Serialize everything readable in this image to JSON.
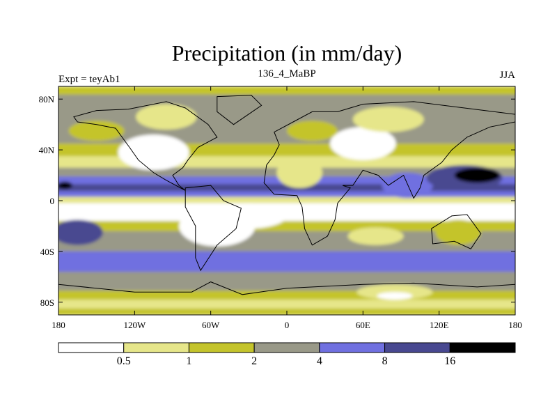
{
  "chart_data": {
    "type": "heatmap",
    "title": "Precipitation (in mm/day)",
    "left_string": "Expt = teyAb1",
    "center_string": "136_4_MaBP",
    "right_string": "JJA",
    "x_axis": {
      "range": [
        -180,
        180
      ],
      "ticks": [
        {
          "value": -180,
          "label": "180"
        },
        {
          "value": -120,
          "label": "120W"
        },
        {
          "value": -60,
          "label": "60W"
        },
        {
          "value": 0,
          "label": "0"
        },
        {
          "value": 60,
          "label": "60E"
        },
        {
          "value": 120,
          "label": "120E"
        },
        {
          "value": 180,
          "label": "180"
        }
      ]
    },
    "y_axis": {
      "range": [
        -90,
        90
      ],
      "ticks": [
        {
          "value": 80,
          "label": "80N"
        },
        {
          "value": 40,
          "label": "40N"
        },
        {
          "value": 0,
          "label": "0"
        },
        {
          "value": -40,
          "label": "40S"
        },
        {
          "value": -80,
          "label": "80S"
        }
      ]
    },
    "levels": [
      0.5,
      1,
      2,
      4,
      8,
      16
    ],
    "level_labels": [
      "0.5",
      "1",
      "2",
      "4",
      "8",
      "16"
    ],
    "colors": [
      "#ffffff",
      "#e6e68a",
      "#c4c42c",
      "#999988",
      "#7070e0",
      "#484890",
      "#000000"
    ],
    "bands": [
      {
        "lat": 87,
        "lev": 2
      },
      {
        "lat": 80,
        "lev": 3
      },
      {
        "lat": 70,
        "lev": 3
      },
      {
        "lat": 60,
        "lev": 3
      },
      {
        "lat": 50,
        "lev": 3
      },
      {
        "lat": 40,
        "lev": 2
      },
      {
        "lat": 30,
        "lev": 1
      },
      {
        "lat": 22,
        "lev": 3
      },
      {
        "lat": 16,
        "lev": 4
      },
      {
        "lat": 10,
        "lev": 5
      },
      {
        "lat": 5,
        "lev": 4
      },
      {
        "lat": 1,
        "lev": 1
      },
      {
        "lat": -5,
        "lev": 0
      },
      {
        "lat": -12,
        "lev": 0
      },
      {
        "lat": -20,
        "lev": 2
      },
      {
        "lat": -28,
        "lev": 3
      },
      {
        "lat": -36,
        "lev": 3
      },
      {
        "lat": -44,
        "lev": 4
      },
      {
        "lat": -52,
        "lev": 4
      },
      {
        "lat": -60,
        "lev": 3
      },
      {
        "lat": -68,
        "lev": 3
      },
      {
        "lat": -74,
        "lev": 2
      },
      {
        "lat": -82,
        "lev": 1
      },
      {
        "lat": -88,
        "lev": 2
      }
    ],
    "regions": [
      {
        "name": "n-america-west-dry",
        "lon": -105,
        "lat": 38,
        "rlon": 28,
        "rlat": 14,
        "lev": 0
      },
      {
        "name": "n-america-north-light",
        "lon": -95,
        "lat": 66,
        "rlon": 24,
        "rlat": 10,
        "lev": 1
      },
      {
        "name": "n-pacific-light",
        "lon": -150,
        "lat": 55,
        "rlon": 22,
        "rlat": 8,
        "lev": 2
      },
      {
        "name": "sahara-dry",
        "lon": 10,
        "lat": 22,
        "rlon": 18,
        "rlat": 12,
        "lev": 1
      },
      {
        "name": "central-asia-dry",
        "lon": 60,
        "lat": 45,
        "rlon": 26,
        "rlat": 13,
        "lev": 0
      },
      {
        "name": "siberia-light",
        "lon": 80,
        "lat": 64,
        "rlon": 28,
        "rlat": 10,
        "lev": 1
      },
      {
        "name": "europe-light",
        "lon": 20,
        "lat": 55,
        "rlon": 20,
        "rlat": 8,
        "lev": 2
      },
      {
        "name": "south-asia-wet",
        "lon": 95,
        "lat": 12,
        "rlon": 20,
        "rlat": 10,
        "lev": 4
      },
      {
        "name": "w-pacific-monsoon",
        "lon": 140,
        "lat": 18,
        "rlon": 30,
        "rlat": 10,
        "lev": 5
      },
      {
        "name": "w-pacific-core",
        "lon": 150,
        "lat": 20,
        "rlon": 18,
        "rlat": 6,
        "lev": 6
      },
      {
        "name": "e-pacific-itcz",
        "lon": -175,
        "lat": 12,
        "rlon": 6,
        "rlat": 3,
        "lev": 6
      },
      {
        "name": "s-america-dry",
        "lon": -55,
        "lat": -20,
        "rlon": 30,
        "rlat": 16,
        "lev": 0
      },
      {
        "name": "s-atlantic-dry",
        "lon": -30,
        "lat": -12,
        "rlon": 30,
        "rlat": 10,
        "lev": 0
      },
      {
        "name": "s-indian-light",
        "lon": 70,
        "lat": -28,
        "rlon": 22,
        "rlat": 7,
        "lev": 1
      },
      {
        "name": "s-pacific-wet",
        "lon": -165,
        "lat": -25,
        "rlon": 20,
        "rlat": 10,
        "lev": 5
      },
      {
        "name": "antarctic-light",
        "lon": 85,
        "lat": -72,
        "rlon": 30,
        "rlat": 6,
        "lev": 1
      },
      {
        "name": "antarctic-dry",
        "lon": 85,
        "lat": -75,
        "rlon": 14,
        "rlat": 3,
        "lev": 0
      },
      {
        "name": "s-ocean-wet",
        "lon": -10,
        "lat": -50,
        "rlon": 30,
        "rlat": 6,
        "lev": 4
      },
      {
        "name": "australia-dry",
        "lon": 135,
        "lat": -25,
        "rlon": 18,
        "rlat": 10,
        "lev": 2
      }
    ],
    "continents": [
      {
        "name": "north-america",
        "points": [
          [
            -168,
            66
          ],
          [
            -150,
            71
          ],
          [
            -125,
            72
          ],
          [
            -95,
            78
          ],
          [
            -80,
            73
          ],
          [
            -62,
            60
          ],
          [
            -55,
            50
          ],
          [
            -70,
            42
          ],
          [
            -78,
            32
          ],
          [
            -82,
            26
          ],
          [
            -90,
            20
          ],
          [
            -85,
            12
          ],
          [
            -80,
            8
          ],
          [
            -95,
            16
          ],
          [
            -105,
            22
          ],
          [
            -117,
            32
          ],
          [
            -124,
            42
          ],
          [
            -135,
            57
          ],
          [
            -150,
            60
          ],
          [
            -165,
            62
          ]
        ]
      },
      {
        "name": "greenland",
        "points": [
          [
            -55,
            82
          ],
          [
            -28,
            83
          ],
          [
            -20,
            75
          ],
          [
            -42,
            60
          ],
          [
            -55,
            70
          ]
        ]
      },
      {
        "name": "south-america",
        "points": [
          [
            -80,
            10
          ],
          [
            -60,
            12
          ],
          [
            -50,
            0
          ],
          [
            -36,
            -6
          ],
          [
            -40,
            -22
          ],
          [
            -55,
            -35
          ],
          [
            -68,
            -55
          ],
          [
            -72,
            -45
          ],
          [
            -72,
            -20
          ],
          [
            -80,
            -5
          ]
        ]
      },
      {
        "name": "eurasia-africa",
        "points": [
          [
            -10,
            36
          ],
          [
            -6,
            44
          ],
          [
            -10,
            54
          ],
          [
            5,
            62
          ],
          [
            20,
            70
          ],
          [
            40,
            70
          ],
          [
            60,
            76
          ],
          [
            100,
            78
          ],
          [
            140,
            73
          ],
          [
            180,
            68
          ],
          [
            180,
            62
          ],
          [
            160,
            58
          ],
          [
            142,
            50
          ],
          [
            130,
            40
          ],
          [
            122,
            30
          ],
          [
            108,
            20
          ],
          [
            105,
            10
          ],
          [
            100,
            2
          ],
          [
            92,
            20
          ],
          [
            80,
            12
          ],
          [
            72,
            20
          ],
          [
            60,
            24
          ],
          [
            52,
            12
          ],
          [
            44,
            12
          ],
          [
            50,
            10
          ],
          [
            40,
            -2
          ],
          [
            38,
            -15
          ],
          [
            32,
            -28
          ],
          [
            20,
            -35
          ],
          [
            14,
            -22
          ],
          [
            12,
            -5
          ],
          [
            8,
            4
          ],
          [
            -10,
            5
          ],
          [
            -18,
            14
          ],
          [
            -16,
            28
          ]
        ]
      },
      {
        "name": "australia",
        "points": [
          [
            114,
            -22
          ],
          [
            130,
            -12
          ],
          [
            142,
            -11
          ],
          [
            153,
            -26
          ],
          [
            145,
            -38
          ],
          [
            132,
            -32
          ],
          [
            115,
            -34
          ]
        ]
      },
      {
        "name": "antarctica",
        "points": [
          [
            -180,
            -66
          ],
          [
            -120,
            -72
          ],
          [
            -75,
            -72
          ],
          [
            -60,
            -64
          ],
          [
            -35,
            -74
          ],
          [
            0,
            -69
          ],
          [
            60,
            -66
          ],
          [
            100,
            -65
          ],
          [
            150,
            -68
          ],
          [
            180,
            -66
          ],
          [
            180,
            -90
          ],
          [
            -180,
            -90
          ]
        ]
      }
    ]
  }
}
